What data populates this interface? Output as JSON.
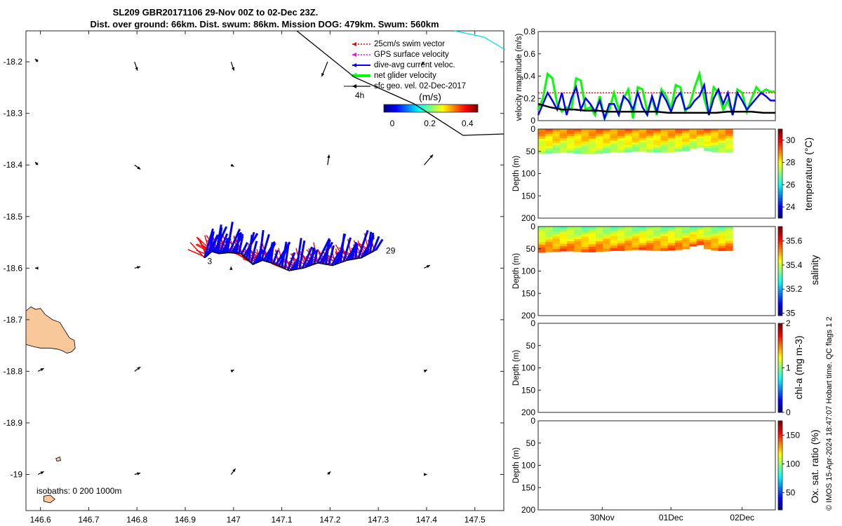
{
  "title": {
    "line1": "SL209 GBR20171106 29-Nov 00Z to 02-Dec 23Z.",
    "line2": "Dist. over ground: 66km. Dist. swum: 86km. Mission DOG: 479km. Swum: 560km"
  },
  "credit": "© IMOS 15-Apr-2024 18:47:07 Hobart time. QC flags 1  2",
  "colors": {
    "swim_vector": "#ff0000",
    "gps_surface_velocity": "#ff00ff",
    "dive_avg_current": "#0000ff",
    "net_glider_velocity": "#00ff00",
    "sfc_geo_velocity": "#000000",
    "mission_track": "#000000",
    "land": "#f8c89a",
    "other_track": "#00dde0"
  },
  "chart_data": [
    {
      "id": "map",
      "type": "scatter",
      "title": "",
      "xlabel": "",
      "ylabel": "",
      "xlim": [
        146.57,
        147.56
      ],
      "ylim": [
        -19.07,
        -18.14
      ],
      "xticks": [
        146.6,
        146.7,
        146.8,
        146.9,
        147,
        147.1,
        147.2,
        147.3,
        147.4,
        147.5
      ],
      "yticks": [
        -18.2,
        -18.3,
        -18.4,
        -18.5,
        -18.6,
        -18.7,
        -18.8,
        -18.9,
        -19
      ],
      "xtick_labels": [
        "146.6",
        "146.7",
        "146.8",
        "146.9",
        "147",
        "147.1",
        "147.2",
        "147.3",
        "147.4",
        "147.5"
      ],
      "ytick_labels": [
        "-18.2",
        "-18.3",
        "-18.4",
        "-18.5",
        "-18.6",
        "-18.7",
        "-18.8",
        "-18.9",
        "-19"
      ],
      "legend": {
        "placement": "top-right",
        "items": [
          {
            "label": "25cm/s swim vector",
            "color": "#ff0000",
            "style": "dotted"
          },
          {
            "label": "GPS surface velocity",
            "color": "#ff00ff",
            "style": "dotted"
          },
          {
            "label": "dive-avg current veloc.",
            "color": "#0000ff",
            "style": "solid"
          },
          {
            "label": "net glider velocity",
            "color": "#00ff00",
            "style": "thick"
          },
          {
            "label": "sfc geo. vel. 02-Dec-2017",
            "color": "#000000",
            "style": "solid"
          }
        ]
      },
      "time_marker": "4h",
      "colorbar": {
        "title": "(m/s)",
        "range": [
          0,
          0.5
        ],
        "tick_labels": [
          "0",
          "0.2",
          "0.4"
        ],
        "ticks": [
          0,
          0.2,
          0.4
        ]
      },
      "isobaths_label": "isobaths: 0   200  1000m",
      "track_labels": [
        {
          "text": "29",
          "lon": 147.31,
          "lat": -18.565
        },
        {
          "text": "3",
          "lon": 146.94,
          "lat": -18.585
        }
      ],
      "track": [
        [
          147.295,
          -18.565
        ],
        [
          147.265,
          -18.58
        ],
        [
          147.235,
          -18.585
        ],
        [
          147.205,
          -18.595
        ],
        [
          147.175,
          -18.59
        ],
        [
          147.145,
          -18.6
        ],
        [
          147.115,
          -18.605
        ],
        [
          147.085,
          -18.592
        ],
        [
          147.06,
          -18.585
        ],
        [
          147.04,
          -18.593
        ],
        [
          147.015,
          -18.572
        ],
        [
          146.99,
          -18.57
        ],
        [
          146.97,
          -18.572
        ],
        [
          146.955,
          -18.568
        ],
        [
          146.94,
          -18.58
        ]
      ],
      "geo_vectors": [
        {
          "lon": 146.595,
          "lat": -18.2,
          "u": -0.01,
          "v": -0.01
        },
        {
          "lon": 146.795,
          "lat": -18.2,
          "u": 0.01,
          "v": 0.03
        },
        {
          "lon": 146.995,
          "lat": -18.2,
          "u": 0.01,
          "v": 0.03
        },
        {
          "lon": 147.195,
          "lat": -18.2,
          "u": -0.02,
          "v": 0.05
        },
        {
          "lon": 147.395,
          "lat": -18.2,
          "u": -0.01,
          "v": 0.01
        },
        {
          "lon": 146.595,
          "lat": -18.4,
          "u": -0.01,
          "v": -0.01
        },
        {
          "lon": 146.795,
          "lat": -18.4,
          "u": 0.02,
          "v": 0.015
        },
        {
          "lon": 146.995,
          "lat": -18.4,
          "u": 0.01,
          "v": 0.005
        },
        {
          "lon": 147.195,
          "lat": -18.4,
          "u": 0.005,
          "v": -0.035
        },
        {
          "lon": 147.395,
          "lat": -18.4,
          "u": 0.03,
          "v": -0.035
        },
        {
          "lon": 146.595,
          "lat": -18.6,
          "u": -0.01,
          "v": 0.0
        },
        {
          "lon": 146.795,
          "lat": -18.6,
          "u": 0.02,
          "v": -0.005
        },
        {
          "lon": 146.995,
          "lat": -18.6,
          "u": 0.0,
          "v": -0.005
        },
        {
          "lon": 147.395,
          "lat": -18.6,
          "u": 0.02,
          "v": -0.01
        },
        {
          "lon": 146.595,
          "lat": -18.8,
          "u": 0.02,
          "v": -0.01
        },
        {
          "lon": 146.795,
          "lat": -18.8,
          "u": 0.02,
          "v": -0.015
        },
        {
          "lon": 146.995,
          "lat": -18.8,
          "u": 0.01,
          "v": -0.005
        },
        {
          "lon": 147.395,
          "lat": -18.8,
          "u": 0.01,
          "v": -0.005
        },
        {
          "lon": 146.595,
          "lat": -19.0,
          "u": 0.02,
          "v": -0.01
        },
        {
          "lon": 146.795,
          "lat": -19.0,
          "u": 0.02,
          "v": -0.005
        },
        {
          "lon": 146.995,
          "lat": -19.0,
          "u": 0.015,
          "v": -0.02
        },
        {
          "lon": 147.195,
          "lat": -19.0,
          "u": 0.01,
          "v": -0.01
        },
        {
          "lon": 147.395,
          "lat": -19.0,
          "u": 0.01,
          "v": 0.0
        }
      ]
    },
    {
      "id": "velocity",
      "type": "line",
      "title": "",
      "xlabel": "",
      "ylabel": "velocity magnitude (m/s)",
      "xlim": [
        0,
        100
      ],
      "ylim": [
        0,
        0.8
      ],
      "yticks": [
        0,
        0.2,
        0.4,
        0.6,
        0.8
      ],
      "ytick_labels": [
        "0",
        "0.2",
        "0.4",
        "0.6",
        "0.8"
      ],
      "series": [
        {
          "color": "#ff0000",
          "style": "dotted",
          "x": [
            0,
            100
          ],
          "y": [
            0.25,
            0.25
          ]
        },
        {
          "color": "#00ff00",
          "style": "solid",
          "width": 3,
          "x": [
            0,
            2,
            4,
            6,
            8,
            10,
            12,
            14,
            16,
            18,
            20,
            22,
            24,
            26,
            28,
            30,
            32,
            34,
            36,
            38,
            40,
            42,
            44,
            46,
            48,
            50,
            52,
            54,
            56,
            58,
            60,
            62,
            64,
            66,
            68,
            70,
            72,
            74,
            76,
            78,
            80,
            82,
            84,
            86,
            88,
            90,
            92,
            94,
            96,
            98,
            100
          ],
          "y": [
            0.1,
            0.2,
            0.42,
            0.38,
            0.15,
            0.08,
            0.12,
            0.1,
            0.38,
            0.36,
            0.1,
            0.12,
            0.05,
            0.22,
            0.02,
            0.1,
            0.25,
            0.1,
            0.2,
            0.28,
            0.02,
            0.3,
            0.28,
            0.08,
            0.2,
            0.05,
            0.28,
            0.22,
            0.1,
            0.32,
            0.3,
            0.08,
            0.15,
            0.3,
            0.42,
            0.2,
            0.05,
            0.3,
            0.25,
            0.1,
            0.18,
            0.05,
            0.28,
            0.25,
            0.08,
            0.2,
            0.3,
            0.25,
            0.28,
            0.26,
            0.26
          ]
        },
        {
          "color": "#0000ff",
          "style": "solid",
          "width": 2.5,
          "x": [
            0,
            2,
            4,
            6,
            8,
            10,
            12,
            14,
            16,
            18,
            20,
            22,
            24,
            26,
            28,
            30,
            32,
            34,
            36,
            38,
            40,
            42,
            44,
            46,
            48,
            50,
            52,
            54,
            56,
            58,
            60,
            62,
            64,
            66,
            68,
            70,
            72,
            74,
            76,
            78,
            80,
            82,
            84,
            86,
            88,
            90,
            92,
            94,
            96,
            98,
            100
          ],
          "y": [
            0.05,
            0.15,
            0.25,
            0.18,
            0.1,
            0.25,
            0.05,
            0.2,
            0.3,
            0.1,
            0.2,
            0.15,
            0.08,
            0.18,
            0.02,
            0.15,
            0.15,
            0.05,
            0.22,
            0.18,
            0.1,
            0.25,
            0.12,
            0.05,
            0.22,
            0.08,
            0.25,
            0.18,
            0.08,
            0.2,
            0.25,
            0.1,
            0.12,
            0.18,
            0.22,
            0.32,
            0.05,
            0.2,
            0.28,
            0.15,
            0.25,
            0.05,
            0.25,
            0.18,
            0.1,
            0.15,
            0.2,
            0.25,
            0.22,
            0.18,
            0.18
          ]
        },
        {
          "color": "#000000",
          "style": "solid",
          "width": 2.5,
          "x": [
            0,
            5,
            10,
            15,
            20,
            25,
            30,
            35,
            40,
            45,
            50,
            55,
            60,
            65,
            70,
            75,
            80,
            85,
            90,
            95,
            100
          ],
          "y": [
            0.15,
            0.12,
            0.1,
            0.1,
            0.09,
            0.09,
            0.08,
            0.08,
            0.08,
            0.08,
            0.08,
            0.07,
            0.07,
            0.07,
            0.07,
            0.07,
            0.08,
            0.08,
            0.08,
            0.07,
            0.07
          ]
        }
      ]
    },
    {
      "id": "temperature",
      "type": "heatmap",
      "ylabel": "Depth (m)",
      "ylim": [
        0,
        200
      ],
      "yticks": [
        0,
        50,
        100,
        150,
        200
      ],
      "ytick_labels": [
        "0",
        "50",
        "100",
        "150",
        "200"
      ],
      "colorbar": {
        "label": "temperature (°C)",
        "range": [
          23,
          31
        ],
        "ticks": [
          24,
          26,
          28,
          30
        ],
        "tick_labels": [
          "24",
          "26",
          "28",
          "30"
        ]
      },
      "profile": {
        "x_start": 0,
        "x_end": 82,
        "max_depth": [
          55,
          54,
          53,
          52,
          53,
          54,
          55,
          55,
          54,
          53,
          52,
          52,
          51,
          50,
          50,
          51,
          52,
          52,
          51,
          50,
          48,
          44,
          41,
          48,
          51,
          52,
          52
        ],
        "surface_value": 29,
        "deep_value": 27.2
      }
    },
    {
      "id": "salinity",
      "type": "heatmap",
      "ylabel": "Depth (m)",
      "ylim": [
        0,
        200
      ],
      "yticks": [
        0,
        50,
        100,
        150,
        200
      ],
      "ytick_labels": [
        "0",
        "50",
        "100",
        "150",
        "200"
      ],
      "colorbar": {
        "label": "salinity",
        "range": [
          34.98,
          35.72
        ],
        "ticks": [
          35,
          35.2,
          35.4,
          35.6
        ],
        "tick_labels": [
          "35",
          "35.2",
          "35.4",
          "35.6"
        ]
      },
      "profile": {
        "x_start": 0,
        "x_end": 82,
        "max_depth": [
          58,
          57,
          56,
          55,
          55,
          56,
          57,
          57,
          56,
          55,
          54,
          54,
          53,
          52,
          52,
          53,
          54,
          54,
          53,
          52,
          50,
          44,
          41,
          50,
          53,
          54,
          54
        ],
        "surface_value": 35.35,
        "deep_value": 35.55
      }
    },
    {
      "id": "chl-a",
      "type": "heatmap",
      "ylabel": "Depth (m)",
      "ylim": [
        0,
        200
      ],
      "yticks": [
        0,
        50,
        100,
        150,
        200
      ],
      "ytick_labels": [
        "0",
        "50",
        "100",
        "150",
        "200"
      ],
      "colorbar": {
        "label": "chl-a (mg m-3)",
        "range": [
          0,
          2
        ],
        "ticks": [
          0,
          1,
          2
        ],
        "tick_labels": [
          "0",
          "1",
          "2"
        ]
      }
    },
    {
      "id": "oxygen",
      "type": "heatmap",
      "ylabel": "Depth (m)",
      "ylim": [
        0,
        200
      ],
      "yticks": [
        0,
        50,
        100,
        150,
        200
      ],
      "ytick_labels": [
        "0",
        "50",
        "100",
        "150",
        "200"
      ],
      "colorbar": {
        "label": "Ox. sat. ratio (%)",
        "range": [
          20,
          175
        ],
        "ticks": [
          50,
          100,
          150
        ],
        "tick_labels": [
          "50",
          "100",
          "150"
        ]
      },
      "x_ticks": [
        27,
        56,
        86
      ],
      "x_tick_labels": [
        "30Nov",
        "01Dec",
        "02Dec"
      ]
    }
  ]
}
